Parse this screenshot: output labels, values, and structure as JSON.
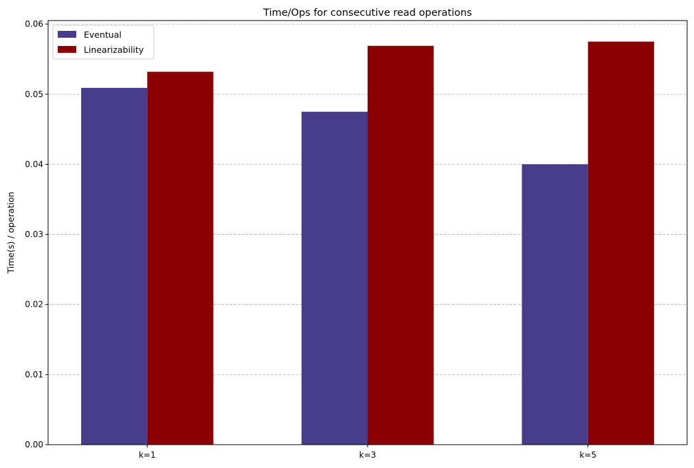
{
  "chart_data": {
    "type": "bar",
    "title": "Time/Ops for consecutive read operations",
    "xlabel": "",
    "ylabel": "Time(s) / operation",
    "categories": [
      "k=1",
      "k=3",
      "k=5"
    ],
    "series": [
      {
        "name": "Eventual",
        "values": [
          0.0509,
          0.0475,
          0.04
        ],
        "color": "#483d8b"
      },
      {
        "name": "Linearizability",
        "values": [
          0.0532,
          0.0569,
          0.0575
        ],
        "color": "#8b0000"
      }
    ],
    "ylim": [
      0,
      0.0605
    ],
    "yticks": [
      "0.00",
      "0.01",
      "0.02",
      "0.03",
      "0.04",
      "0.05",
      "0.06"
    ],
    "grid": "y-dashed",
    "legend_position": "top-left"
  }
}
